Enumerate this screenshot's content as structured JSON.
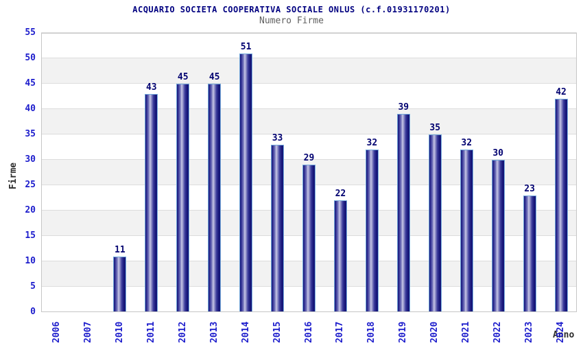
{
  "chart_data": {
    "type": "bar",
    "title": "ACQUARIO SOCIETA COOPERATIVA SOCIALE ONLUS (c.f.01931170201)",
    "subtitle": "Numero Firme",
    "xlabel": "Anno",
    "ylabel": "Firme",
    "categories": [
      "2006",
      "2007",
      "2010",
      "2011",
      "2012",
      "2013",
      "2014",
      "2015",
      "2016",
      "2017",
      "2018",
      "2019",
      "2020",
      "2021",
      "2022",
      "2023",
      "2024"
    ],
    "values": [
      0,
      0,
      11,
      43,
      45,
      45,
      51,
      33,
      29,
      22,
      32,
      39,
      35,
      32,
      30,
      23,
      42
    ],
    "ylim": [
      0,
      55
    ],
    "ytick_step": 5,
    "grid": true,
    "legend": "none",
    "bar_labels_shown": true,
    "colors": {
      "title": "#000080",
      "subtitle": "#5f5f5f",
      "axis_title": "#2a2a2a",
      "tick_label": "#1c1ccc",
      "value_label": "#000070",
      "grid_line": "#dcdcdc",
      "band_gray": "#f2f2f2",
      "band_white": "#ffffff",
      "frame": "#c6c6c6",
      "bar_dark": "#161678",
      "bar_mid": "#3c3c9c",
      "bar_highlight": "#c8c8e8",
      "bar_border": "#74aadc"
    }
  }
}
